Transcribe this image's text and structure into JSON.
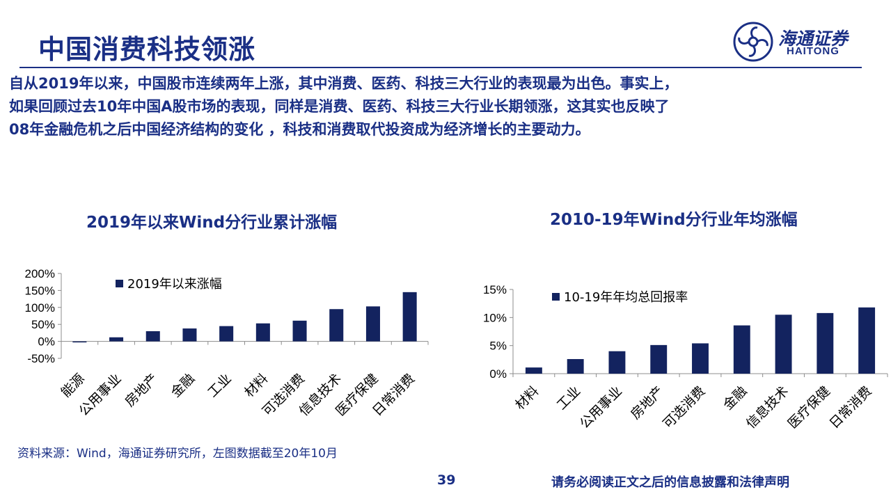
{
  "header": {
    "title": "中国消费科技领涨",
    "logo_cn": "海通证券",
    "logo_en": "HAITONG"
  },
  "intro": {
    "lines": [
      "自从2019年以来，中国股市连续两年上涨，其中消费、医药、科技三大行业的表现最为出色。事实上，",
      "如果回顾过去10年中国A股市场的表现，同样是消费、医药、科技三大行业长期领涨，这其实也反映了",
      "08年金融危机之后中国经济结构的变化 ，科技和消费取代投资成为经济增长的主要动力。"
    ]
  },
  "colors": {
    "accent": "#1a2f85",
    "bar": "#13235f",
    "axis": "#8c8c8c"
  },
  "chart_data": [
    {
      "type": "bar",
      "title": "2019年以来Wind分行业累计涨幅",
      "categories": [
        "能源",
        "公用事业",
        "房地产",
        "金融",
        "工业",
        "材料",
        "可选消费",
        "信息技术",
        "医疗保健",
        "日常消费"
      ],
      "series": [
        {
          "name": "2019年以来涨幅",
          "values": [
            -3,
            12,
            30,
            38,
            45,
            53,
            61,
            95,
            103,
            145
          ]
        }
      ],
      "ylim": [
        -50,
        200
      ],
      "yticks": [
        -50,
        0,
        50,
        100,
        150,
        200
      ],
      "ytick_labels": [
        "-50%",
        "0%",
        "50%",
        "100%",
        "150%",
        "200%"
      ],
      "xlabel": "",
      "ylabel": "",
      "legend": "top-left",
      "grid": false
    },
    {
      "type": "bar",
      "title": "2010-19年Wind分行业年均涨幅",
      "categories": [
        "材料",
        "工业",
        "公用事业",
        "房地产",
        "可选消费",
        "金融",
        "信息技术",
        "医疗保健",
        "日常消费"
      ],
      "series": [
        {
          "name": "10-19年年均总回报率",
          "values": [
            1.1,
            2.6,
            4.0,
            5.1,
            5.4,
            8.6,
            10.5,
            10.8,
            11.8
          ]
        }
      ],
      "ylim": [
        0,
        15
      ],
      "yticks": [
        0,
        5,
        10,
        15
      ],
      "ytick_labels": [
        "0%",
        "5%",
        "10%",
        "15%"
      ],
      "xlabel": "",
      "ylabel": "",
      "legend": "top-left",
      "grid": false
    }
  ],
  "footer": {
    "source": "资料来源：Wind，海通证券研究所，左图数据截至20年10月",
    "page_number": "39",
    "disclaimer": "请务必阅读正文之后的信息披露和法律声明"
  }
}
